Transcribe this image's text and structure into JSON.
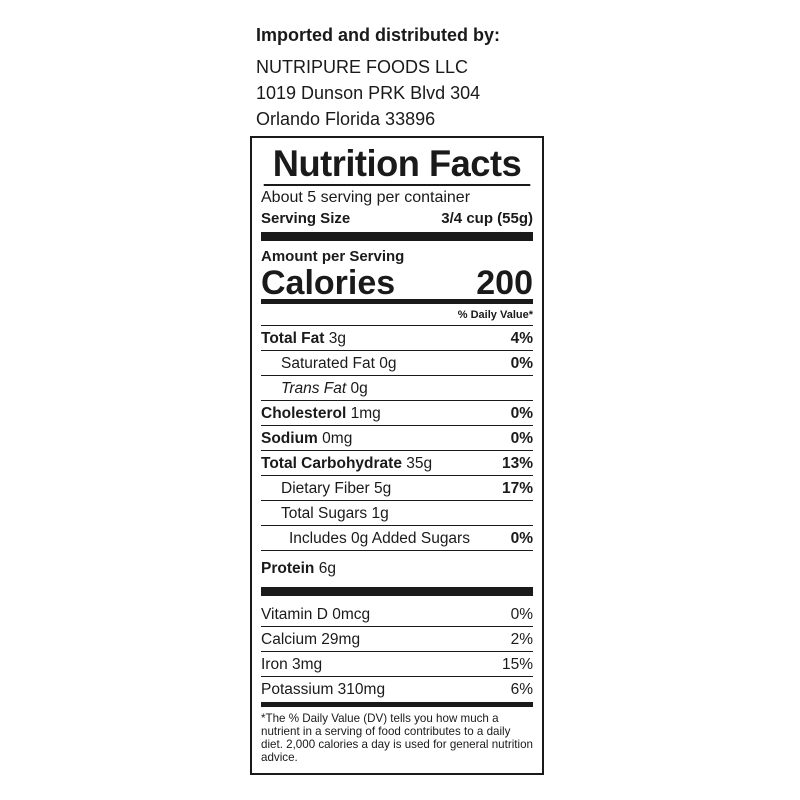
{
  "importer": {
    "heading": "Imported and distributed by:",
    "lines": [
      "NUTRIPURE FOODS LLC",
      "1019 Dunson PRK Blvd 304",
      "Orlando Florida 33896"
    ]
  },
  "label": {
    "title": "Nutrition Facts",
    "servings_per_container": "About 5 serving per container",
    "serving_size_label": "Serving Size",
    "serving_size_value": "3/4 cup (55g)",
    "amount_per_serving": "Amount per Serving",
    "calories_label": "Calories",
    "calories_value": "200",
    "daily_value_header": "% Daily Value*",
    "nutrients": [
      {
        "name": "Total Fat",
        "amount": "3g",
        "dv": "4%"
      },
      {
        "name": "Saturated Fat",
        "amount": "0g",
        "dv": "0%"
      },
      {
        "name": "Trans Fat",
        "amount": "0g",
        "dv": ""
      },
      {
        "name": "Cholesterol",
        "amount": "1mg",
        "dv": "0%"
      },
      {
        "name": "Sodium",
        "amount": "0mg",
        "dv": "0%"
      },
      {
        "name": "Total Carbohydrate",
        "amount": "35g",
        "dv": "13%"
      },
      {
        "name": "Dietary Fiber",
        "amount": "5g",
        "dv": "17%"
      },
      {
        "name": "Total Sugars",
        "amount": "1g",
        "dv": ""
      },
      {
        "name": "Includes 0g Added Sugars",
        "amount": "",
        "dv": "0%"
      }
    ],
    "protein": {
      "name": "Protein",
      "amount": "6g"
    },
    "vitamins": [
      {
        "name": "Vitamin D 0mcg",
        "dv": "0%"
      },
      {
        "name": "Calcium 29mg",
        "dv": "2%"
      },
      {
        "name": "Iron 3mg",
        "dv": "15%"
      },
      {
        "name": "Potassium 310mg",
        "dv": "6%"
      }
    ],
    "footnote": "*The % Daily Value (DV) tells you how much a nutrient in a serving of food contributes to a daily diet. 2,000 calories a day is used for general nutrition advice."
  }
}
